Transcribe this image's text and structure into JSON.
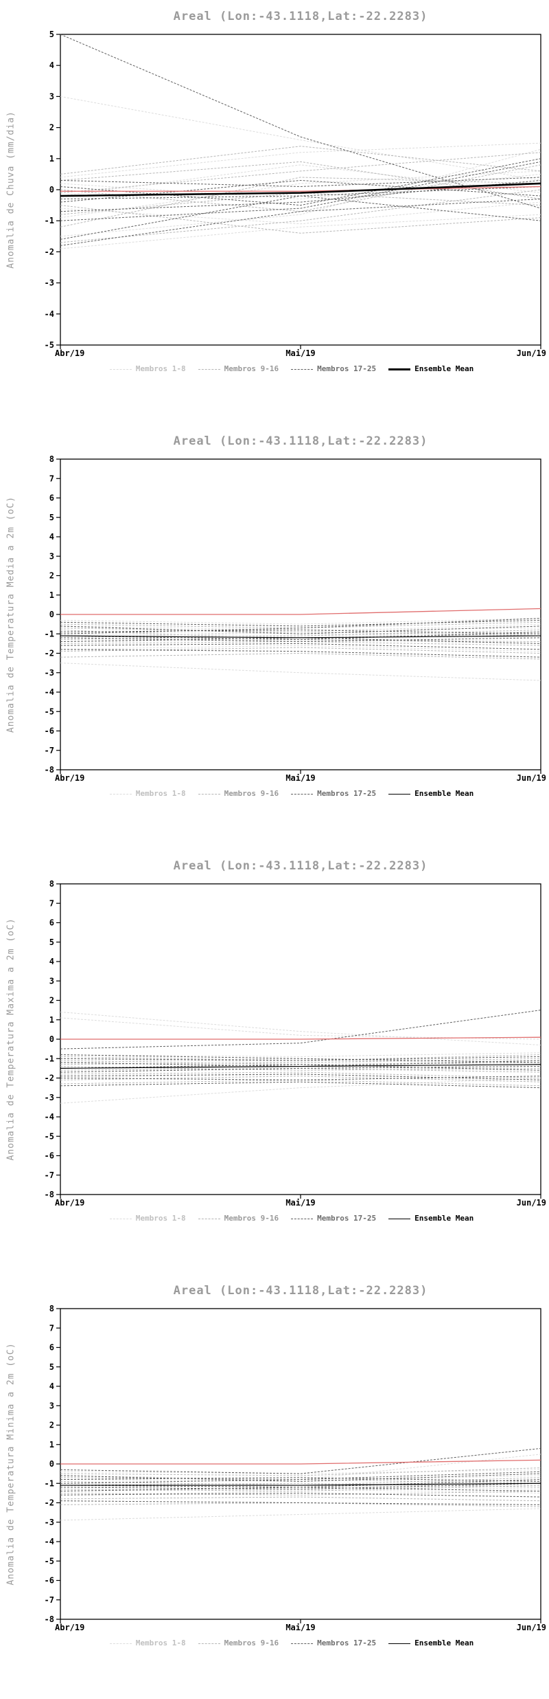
{
  "page": {
    "background": "#ffffff"
  },
  "chart_data": [
    {
      "type": "line",
      "title": "Areal (Lon:-43.1118,Lat:-22.2283)",
      "ylabel": "Anomalia de Chuva (mm/dia)",
      "ylim": [
        -5,
        5
      ],
      "ytick_step": 1,
      "x_labels": [
        "Abr/19",
        "Mai/19",
        "Jun/19"
      ],
      "grid": false,
      "legend_position": "bottom",
      "legend": [
        {
          "label": "Membros 1-8",
          "color": "#dcdcdc",
          "label_color": "#c0c0c0",
          "dash": "3 2",
          "width": 1
        },
        {
          "label": "Membros 9-16",
          "color": "#b6b6b6",
          "label_color": "#9a9a9a",
          "dash": "3 2",
          "width": 1
        },
        {
          "label": "Membros 17-25",
          "color": "#5f5f5f",
          "label_color": "#6e6e6e",
          "dash": "3 2",
          "width": 1
        },
        {
          "label": "Ensemble Mean",
          "color": "#000000",
          "label_color": "#000000",
          "dash": "",
          "width": 2.6
        }
      ],
      "reference_line": {
        "color": "#e06c6c",
        "values": [
          -0.05,
          -0.05,
          0.1
        ]
      },
      "ensemble_mean": [
        -0.2,
        -0.1,
        0.2
      ],
      "members": {
        "group1": [
          [
            3.0,
            1.6,
            0.3
          ],
          [
            0.4,
            1.2,
            1.5
          ],
          [
            -0.2,
            0.8,
            -0.1
          ],
          [
            -0.9,
            0.2,
            0.6
          ],
          [
            -1.5,
            -0.8,
            1.3
          ],
          [
            0.2,
            -0.3,
            0.5
          ],
          [
            -0.6,
            -1.1,
            -0.4
          ],
          [
            -1.9,
            -1.2,
            -0.8
          ]
        ],
        "group2": [
          [
            0.5,
            1.4,
            0.6
          ],
          [
            -0.1,
            0.6,
            1.2
          ],
          [
            -0.8,
            -0.1,
            -0.5
          ],
          [
            -1.2,
            0.4,
            0.2
          ],
          [
            0.0,
            -0.7,
            0.8
          ],
          [
            -1.7,
            -1.0,
            0.0
          ],
          [
            0.3,
            0.9,
            -0.3
          ],
          [
            -0.5,
            -1.4,
            -0.9
          ]
        ],
        "group3": [
          [
            5.0,
            1.7,
            -0.6
          ],
          [
            0.3,
            0.1,
            0.4
          ],
          [
            -0.3,
            -0.2,
            -1.0
          ],
          [
            -0.7,
            -0.4,
            0.3
          ],
          [
            -1.6,
            -0.2,
            0.1
          ],
          [
            -1.8,
            -0.7,
            -0.3
          ],
          [
            0.1,
            -0.5,
            1.0
          ],
          [
            -0.4,
            0.3,
            -0.2
          ],
          [
            -1.0,
            -0.6,
            0.9
          ]
        ]
      }
    },
    {
      "type": "line",
      "title": "Areal (Lon:-43.1118,Lat:-22.2283)",
      "ylabel": "Anomalia de Temperatura Media a 2m (oC)",
      "ylim": [
        -8,
        8
      ],
      "ytick_step": 1,
      "x_labels": [
        "Abr/19",
        "Mai/19",
        "Jun/19"
      ],
      "grid": false,
      "legend_position": "bottom",
      "legend": [
        {
          "label": "Membros 1-8",
          "color": "#dcdcdc",
          "label_color": "#c0c0c0",
          "dash": "3 2",
          "width": 1
        },
        {
          "label": "Membros 9-16",
          "color": "#b6b6b6",
          "label_color": "#9a9a9a",
          "dash": "3 2",
          "width": 1
        },
        {
          "label": "Membros 17-25",
          "color": "#5f5f5f",
          "label_color": "#6e6e6e",
          "dash": "3 2",
          "width": 1
        },
        {
          "label": "Ensemble Mean",
          "color": "#000000",
          "label_color": "#000000",
          "dash": "",
          "width": 1.2
        }
      ],
      "reference_line": {
        "color": "#e06c6c",
        "values": [
          0.0,
          0.0,
          0.3
        ]
      },
      "ensemble_mean": [
        -1.1,
        -1.2,
        -1.1
      ],
      "members": {
        "group1": [
          [
            -0.6,
            -0.8,
            -0.7
          ],
          [
            -1.0,
            -1.1,
            -0.9
          ],
          [
            -1.4,
            -1.3,
            -1.5
          ],
          [
            -0.3,
            -0.5,
            -0.2
          ],
          [
            -2.5,
            -3.0,
            -3.4
          ],
          [
            -1.8,
            -1.6,
            -1.9
          ],
          [
            -0.9,
            -1.0,
            -1.2
          ],
          [
            -1.2,
            -0.9,
            -0.5
          ]
        ],
        "group2": [
          [
            -0.7,
            -0.9,
            -1.1
          ],
          [
            -1.1,
            -1.2,
            -1.0
          ],
          [
            -1.5,
            -1.4,
            -1.6
          ],
          [
            -0.5,
            -0.7,
            -0.4
          ],
          [
            -1.9,
            -1.7,
            -2.0
          ],
          [
            -1.3,
            -1.1,
            -0.8
          ],
          [
            -0.8,
            -1.3,
            -1.4
          ],
          [
            -2.2,
            -2.0,
            -2.3
          ]
        ],
        "group3": [
          [
            -0.4,
            -0.6,
            -0.3
          ],
          [
            -0.9,
            -0.8,
            -1.0
          ],
          [
            -1.2,
            -1.4,
            -1.2
          ],
          [
            -1.6,
            -1.5,
            -1.8
          ],
          [
            -0.6,
            -1.0,
            -0.6
          ],
          [
            -1.4,
            -1.2,
            -1.5
          ],
          [
            -1.0,
            -0.7,
            -0.2
          ],
          [
            -1.8,
            -1.9,
            -2.2
          ],
          [
            -1.1,
            -1.3,
            -0.9
          ]
        ]
      }
    },
    {
      "type": "line",
      "title": "Areal (Lon:-43.1118,Lat:-22.2283)",
      "ylabel": "Anomalia de Temperatura Maxima a 2m (oC)",
      "ylim": [
        -8,
        8
      ],
      "ytick_step": 1,
      "x_labels": [
        "Abr/19",
        "Mai/19",
        "Jun/19"
      ],
      "grid": false,
      "legend_position": "bottom",
      "legend": [
        {
          "label": "Membros 1-8",
          "color": "#dcdcdc",
          "label_color": "#c0c0c0",
          "dash": "3 2",
          "width": 1
        },
        {
          "label": "Membros 9-16",
          "color": "#b6b6b6",
          "label_color": "#9a9a9a",
          "dash": "3 2",
          "width": 1
        },
        {
          "label": "Membros 17-25",
          "color": "#5f5f5f",
          "label_color": "#6e6e6e",
          "dash": "3 2",
          "width": 1
        },
        {
          "label": "Ensemble Mean",
          "color": "#000000",
          "label_color": "#000000",
          "dash": "",
          "width": 1.2
        }
      ],
      "reference_line": {
        "color": "#e06c6c",
        "values": [
          0.0,
          0.0,
          0.1
        ]
      },
      "ensemble_mean": [
        -1.5,
        -1.4,
        -1.3
      ],
      "members": {
        "group1": [
          [
            1.4,
            0.4,
            -0.3
          ],
          [
            1.1,
            0.2,
            0.0
          ],
          [
            -1.0,
            -1.2,
            -1.1
          ],
          [
            -1.5,
            -1.4,
            -1.6
          ],
          [
            -2.0,
            -1.8,
            -2.1
          ],
          [
            -3.3,
            -2.5,
            -2.0
          ],
          [
            -1.2,
            -1.0,
            -1.4
          ],
          [
            -0.8,
            -0.9,
            -0.7
          ]
        ],
        "group2": [
          [
            -1.1,
            -1.3,
            -1.2
          ],
          [
            -1.6,
            -1.5,
            -1.7
          ],
          [
            -2.1,
            -1.9,
            -2.2
          ],
          [
            -0.9,
            -1.1,
            -0.8
          ],
          [
            -1.4,
            -1.6,
            -1.5
          ],
          [
            -1.8,
            -1.7,
            -2.0
          ],
          [
            -1.3,
            -1.2,
            -1.0
          ],
          [
            -2.3,
            -2.1,
            -2.4
          ]
        ],
        "group3": [
          [
            -0.5,
            -0.2,
            1.5
          ],
          [
            -1.0,
            -1.1,
            -0.9
          ],
          [
            -1.5,
            -1.3,
            -1.6
          ],
          [
            -2.0,
            -2.1,
            -1.9
          ],
          [
            -0.8,
            -1.0,
            -1.2
          ],
          [
            -1.7,
            -1.5,
            -1.4
          ],
          [
            -1.2,
            -1.4,
            -1.1
          ],
          [
            -2.4,
            -2.2,
            -2.5
          ],
          [
            -1.9,
            -1.8,
            -2.1
          ]
        ]
      }
    },
    {
      "type": "line",
      "title": "Areal (Lon:-43.1118,Lat:-22.2283)",
      "ylabel": "Anomalia de Temperatura Minima a 2m (oC)",
      "ylim": [
        -8,
        8
      ],
      "ytick_step": 1,
      "x_labels": [
        "Abr/19",
        "Mai/19",
        "Jun/19"
      ],
      "grid": false,
      "legend_position": "bottom",
      "legend": [
        {
          "label": "Membros 1-8",
          "color": "#dcdcdc",
          "label_color": "#c0c0c0",
          "dash": "3 2",
          "width": 1
        },
        {
          "label": "Membros 9-16",
          "color": "#b6b6b6",
          "label_color": "#9a9a9a",
          "dash": "3 2",
          "width": 1
        },
        {
          "label": "Membros 17-25",
          "color": "#5f5f5f",
          "label_color": "#6e6e6e",
          "dash": "3 2",
          "width": 1
        },
        {
          "label": "Ensemble Mean",
          "color": "#000000",
          "label_color": "#000000",
          "dash": "",
          "width": 1.2
        }
      ],
      "reference_line": {
        "color": "#e06c6c",
        "values": [
          0.0,
          0.0,
          0.2
        ]
      },
      "ensemble_mean": [
        -1.1,
        -1.1,
        -1.0
      ],
      "members": {
        "group1": [
          [
            -0.4,
            -0.5,
            -0.3
          ],
          [
            -0.8,
            -0.9,
            -0.6
          ],
          [
            -1.2,
            -1.1,
            -1.3
          ],
          [
            -1.6,
            -1.4,
            -1.0
          ],
          [
            -2.9,
            -2.6,
            -2.3
          ],
          [
            -0.6,
            -0.8,
            0.5
          ],
          [
            -1.0,
            -1.2,
            -0.9
          ],
          [
            -1.4,
            -1.3,
            -1.5
          ]
        ],
        "group2": [
          [
            -0.7,
            -0.8,
            -1.0
          ],
          [
            -1.1,
            -1.0,
            -1.2
          ],
          [
            -1.5,
            -1.6,
            -1.4
          ],
          [
            -0.5,
            -0.6,
            -0.2
          ],
          [
            -1.8,
            -1.7,
            -1.9
          ],
          [
            -1.3,
            -1.4,
            -1.1
          ],
          [
            -0.9,
            -1.1,
            -0.7
          ],
          [
            -2.1,
            -2.0,
            -2.2
          ]
        ],
        "group3": [
          [
            -0.3,
            -0.5,
            0.8
          ],
          [
            -0.8,
            -0.7,
            -0.9
          ],
          [
            -1.2,
            -1.3,
            -1.0
          ],
          [
            -1.6,
            -1.5,
            -1.7
          ],
          [
            -0.6,
            -0.9,
            -0.5
          ],
          [
            -1.4,
            -1.2,
            -1.4
          ],
          [
            -1.0,
            -0.8,
            -0.4
          ],
          [
            -1.9,
            -2.0,
            -2.1
          ],
          [
            -1.1,
            -1.2,
            -0.8
          ]
        ]
      }
    }
  ]
}
